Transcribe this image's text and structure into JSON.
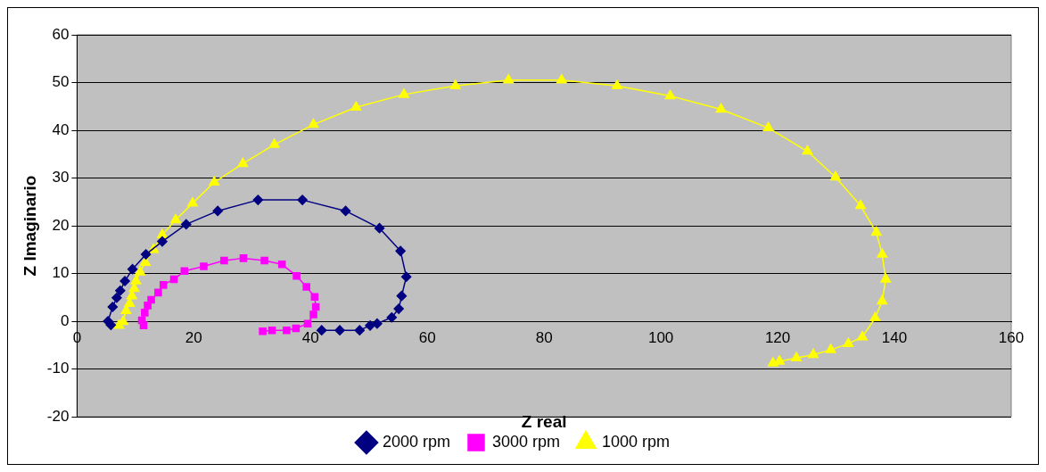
{
  "chart_data": {
    "type": "line",
    "xlabel": "Z real",
    "ylabel": "Z Imaginario",
    "xlim": [
      0,
      160
    ],
    "xticks": [
      0,
      20,
      40,
      60,
      80,
      100,
      120,
      140,
      160
    ],
    "ylim": [
      -20,
      60
    ],
    "yticks": [
      -20,
      -10,
      0,
      10,
      20,
      30,
      40,
      50,
      60
    ],
    "grid": "y",
    "legend": "bottom",
    "line_style": "solid",
    "series": [
      {
        "name": "2000 rpm",
        "color": "#000080",
        "marker": "diamond",
        "x": [
          5.8,
          5.3,
          6.1,
          6.8,
          7.4,
          8.2,
          9.5,
          11.8,
          14.6,
          18.7,
          24.1,
          31.0,
          38.6,
          46.0,
          51.8,
          55.4,
          56.4,
          55.6,
          55.1,
          53.9,
          51.4,
          50.2,
          48.4,
          45.0,
          41.9
        ],
        "values": [
          -0.8,
          0.0,
          3.0,
          4.9,
          6.4,
          8.4,
          10.9,
          14.0,
          16.7,
          20.3,
          23.1,
          25.4,
          25.4,
          23.1,
          19.5,
          14.7,
          9.3,
          5.3,
          2.6,
          0.8,
          -0.5,
          -0.9,
          -1.9,
          -1.9,
          -1.9
        ]
      },
      {
        "name": "3000 rpm",
        "color": "#ff00ff",
        "marker": "square",
        "x": [
          11.4,
          11.1,
          11.6,
          12.1,
          12.7,
          13.9,
          14.8,
          16.6,
          18.4,
          21.7,
          25.2,
          28.5,
          32.1,
          35.1,
          37.6,
          39.3,
          40.7,
          40.9,
          40.5,
          39.5,
          37.5,
          35.9,
          33.4,
          31.8
        ],
        "values": [
          -0.9,
          0.2,
          1.8,
          3.3,
          4.5,
          6.0,
          7.6,
          8.8,
          10.5,
          11.5,
          12.7,
          13.2,
          12.7,
          11.9,
          9.5,
          7.2,
          5.1,
          3.0,
          1.4,
          -0.5,
          -1.5,
          -1.9,
          -1.9,
          -2.1
        ]
      },
      {
        "name": "1000 rpm",
        "color": "#ffff00",
        "marker": "triangle",
        "x": [
          7.2,
          7.9,
          8.4,
          9.0,
          9.4,
          9.8,
          10.1,
          10.8,
          11.7,
          13.1,
          14.6,
          16.9,
          19.8,
          23.5,
          28.4,
          33.8,
          40.5,
          47.8,
          56.0,
          64.8,
          73.9,
          83.0,
          92.5,
          101.6,
          110.3,
          118.4,
          125.1,
          129.9,
          134.2,
          136.9,
          137.9,
          138.5,
          137.9,
          136.7,
          134.5,
          132.1,
          129.1,
          126.1,
          123.2,
          120.3,
          119.2
        ],
        "values": [
          -0.9,
          -0.1,
          2.2,
          3.7,
          5.3,
          6.8,
          8.4,
          10.3,
          12.3,
          15.0,
          18.1,
          21.2,
          24.7,
          29.1,
          33.0,
          37.0,
          41.2,
          44.8,
          47.5,
          49.3,
          50.5,
          50.5,
          49.3,
          47.2,
          44.4,
          40.5,
          35.6,
          30.2,
          24.2,
          18.6,
          14.0,
          8.8,
          4.2,
          0.7,
          -3.3,
          -4.7,
          -6.0,
          -7.0,
          -7.7,
          -8.4,
          -8.8
        ]
      }
    ]
  }
}
